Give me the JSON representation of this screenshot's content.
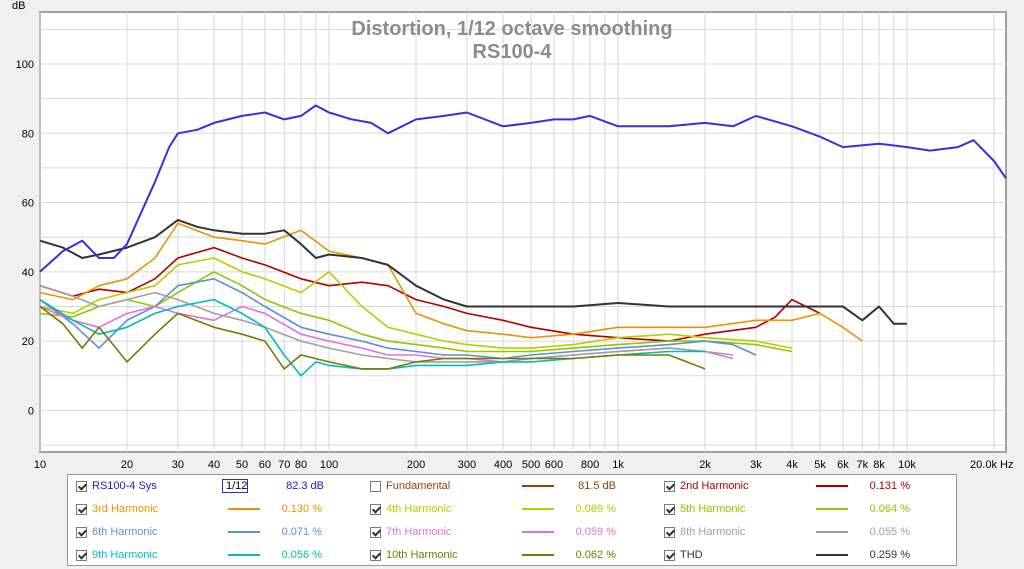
{
  "chart_data": {
    "type": "line",
    "title": "Distortion, 1/12 octave smoothing",
    "subtitle": "RS100-4",
    "ylabel": "dB",
    "xlabel_unit": "Hz",
    "x_scale": "log",
    "xlim": [
      10,
      22000
    ],
    "ylim": [
      -12,
      115
    ],
    "x_ticks": [
      10,
      20,
      30,
      40,
      50,
      60,
      70,
      80,
      100,
      200,
      300,
      400,
      500,
      600,
      800,
      1000,
      2000,
      3000,
      4000,
      5000,
      6000,
      7000,
      8000,
      10000,
      20000
    ],
    "x_tick_labels": [
      "10",
      "20",
      "30",
      "40",
      "50",
      "60",
      "70",
      "80",
      "100",
      "200",
      "300",
      "400",
      "500",
      "600",
      "800",
      "1k",
      "2k",
      "3k",
      "4k",
      "5k",
      "6k",
      "7k",
      "8k",
      "10k",
      "20.0k Hz"
    ],
    "y_ticks": [
      0,
      20,
      40,
      60,
      80,
      100
    ],
    "y_tick_labels": [
      "0",
      "20",
      "40",
      "60",
      "80",
      "100"
    ],
    "grid": true,
    "legend_position": "bottom",
    "series": [
      {
        "name": "RS100-4 Sys",
        "color": "#3333dd",
        "value_label": "82.3 dB",
        "checked": true,
        "x": [
          10,
          12,
          14,
          16,
          18,
          20,
          25,
          28,
          30,
          35,
          40,
          50,
          60,
          70,
          80,
          90,
          100,
          120,
          140,
          160,
          200,
          250,
          300,
          400,
          500,
          600,
          700,
          800,
          1000,
          1500,
          2000,
          2500,
          3000,
          4000,
          5000,
          6000,
          8000,
          10000,
          12000,
          15000,
          17000,
          20000,
          22000
        ],
        "y": [
          40,
          46,
          49,
          44,
          44,
          48,
          66,
          76,
          80,
          81,
          83,
          85,
          86,
          84,
          85,
          88,
          86,
          84,
          83,
          80,
          84,
          85,
          86,
          82,
          83,
          84,
          84,
          85,
          82,
          82,
          83,
          82,
          85,
          82,
          79,
          76,
          77,
          76,
          75,
          76,
          78,
          72,
          67
        ]
      },
      {
        "name": "Fundamental",
        "color": "#8b4513",
        "value_label": "81.5 dB",
        "checked": false,
        "x": [],
        "y": []
      },
      {
        "name": "2nd Harmonic",
        "color": "#b00000",
        "value_label": "0.131 %",
        "checked": true,
        "x": [
          10,
          13,
          16,
          20,
          25,
          30,
          40,
          50,
          60,
          80,
          100,
          130,
          160,
          200,
          250,
          300,
          400,
          500,
          700,
          1000,
          1500,
          2000,
          3000,
          3500,
          4000,
          5000
        ],
        "y": [
          36,
          33,
          35,
          34,
          38,
          44,
          47,
          44,
          42,
          38,
          36,
          37,
          36,
          32,
          30,
          28,
          26,
          24,
          22,
          21,
          20,
          22,
          24,
          27,
          32,
          28
        ]
      },
      {
        "name": "3rd Harmonic",
        "color": "#e69500",
        "value_label": "0.130 %",
        "checked": true,
        "x": [
          10,
          13,
          16,
          20,
          25,
          30,
          40,
          50,
          60,
          80,
          100,
          130,
          160,
          200,
          250,
          300,
          400,
          500,
          700,
          1000,
          1500,
          2000,
          3000,
          4000,
          5000,
          6000,
          7000
        ],
        "y": [
          34,
          32,
          36,
          38,
          44,
          54,
          50,
          49,
          48,
          52,
          46,
          44,
          42,
          28,
          25,
          23,
          22,
          21,
          22,
          24,
          24,
          24,
          26,
          26,
          28,
          24,
          20
        ]
      },
      {
        "name": "4th Harmonic",
        "color": "#bbcc00",
        "value_label": "0.089 %",
        "checked": true,
        "x": [
          10,
          13,
          16,
          20,
          25,
          30,
          40,
          50,
          60,
          80,
          100,
          130,
          160,
          200,
          250,
          300,
          400,
          500,
          700,
          1000,
          1500,
          2000,
          3000,
          4000
        ],
        "y": [
          30,
          28,
          32,
          34,
          36,
          42,
          44,
          40,
          38,
          34,
          40,
          30,
          24,
          22,
          20,
          19,
          18,
          18,
          19,
          21,
          22,
          21,
          20,
          18
        ]
      },
      {
        "name": "5th Harmonic",
        "color": "#8dc800",
        "value_label": "0.064 %",
        "checked": true,
        "x": [
          10,
          13,
          16,
          20,
          25,
          30,
          40,
          50,
          60,
          80,
          100,
          130,
          160,
          200,
          250,
          300,
          400,
          500,
          700,
          1000,
          1500,
          2000,
          3000,
          4000
        ],
        "y": [
          28,
          27,
          30,
          32,
          30,
          34,
          40,
          36,
          32,
          28,
          26,
          22,
          20,
          19,
          18,
          17,
          17,
          17,
          18,
          19,
          20,
          20,
          19,
          17
        ]
      },
      {
        "name": "6th Harmonic",
        "color": "#5b8fd6",
        "value_label": "0.071 %",
        "checked": true,
        "x": [
          10,
          13,
          16,
          20,
          25,
          30,
          40,
          50,
          60,
          80,
          100,
          130,
          160,
          200,
          250,
          300,
          400,
          500,
          700,
          1000,
          1500,
          2000,
          2500,
          3000
        ],
        "y": [
          32,
          25,
          18,
          26,
          30,
          36,
          38,
          34,
          30,
          24,
          22,
          20,
          18,
          17,
          16,
          16,
          15,
          16,
          17,
          18,
          19,
          20,
          19,
          16
        ]
      },
      {
        "name": "7th Harmonic",
        "color": "#e070e0",
        "value_label": "0.059 %",
        "checked": true,
        "x": [
          10,
          13,
          16,
          20,
          25,
          30,
          40,
          50,
          60,
          80,
          100,
          130,
          160,
          200,
          250,
          300,
          400,
          500,
          700,
          1000,
          1500,
          2000,
          2500
        ],
        "y": [
          30,
          26,
          24,
          28,
          30,
          28,
          26,
          30,
          28,
          22,
          20,
          18,
          16,
          16,
          15,
          15,
          14,
          15,
          16,
          17,
          18,
          17,
          15
        ]
      },
      {
        "name": "8th Harmonic",
        "color": "#a0a0a0",
        "value_label": "0.055 %",
        "checked": true,
        "x": [
          10,
          13,
          16,
          20,
          25,
          30,
          40,
          50,
          60,
          80,
          100,
          130,
          160,
          200,
          250,
          300,
          400,
          500,
          700,
          1000,
          1500,
          2000,
          2500
        ],
        "y": [
          36,
          33,
          30,
          32,
          34,
          32,
          28,
          26,
          24,
          20,
          18,
          16,
          15,
          14,
          14,
          14,
          14,
          15,
          16,
          17,
          18,
          17,
          16
        ]
      },
      {
        "name": "9th Harmonic",
        "color": "#00bcbc",
        "value_label": "0.056 %",
        "checked": true,
        "x": [
          10,
          13,
          16,
          20,
          25,
          30,
          40,
          50,
          60,
          70,
          80,
          90,
          100,
          130,
          160,
          200,
          250,
          300,
          400,
          500,
          700,
          1000,
          1500,
          2000
        ],
        "y": [
          32,
          26,
          22,
          24,
          28,
          30,
          32,
          28,
          24,
          16,
          10,
          14,
          13,
          12,
          12,
          13,
          13,
          13,
          14,
          14,
          15,
          16,
          17,
          17
        ]
      },
      {
        "name": "10th Harmonic",
        "color": "#7a7a00",
        "value_label": "0.062 %",
        "checked": true,
        "x": [
          10,
          12,
          14,
          16,
          20,
          25,
          30,
          40,
          50,
          60,
          70,
          80,
          100,
          130,
          160,
          200,
          250,
          300,
          400,
          500,
          700,
          1000,
          1500,
          2000
        ],
        "y": [
          30,
          25,
          18,
          24,
          14,
          22,
          28,
          24,
          22,
          20,
          12,
          16,
          14,
          12,
          12,
          14,
          15,
          15,
          15,
          15,
          15,
          16,
          16,
          12
        ]
      },
      {
        "name": "THD",
        "color": "#333333",
        "value_label": "0.259 %",
        "checked": true,
        "x": [
          10,
          12,
          14,
          16,
          20,
          25,
          30,
          35,
          40,
          50,
          60,
          70,
          80,
          90,
          100,
          130,
          160,
          200,
          250,
          300,
          400,
          500,
          700,
          1000,
          1500,
          2000,
          3000,
          4000,
          5000,
          6000,
          7000,
          8000,
          9000,
          10000
        ],
        "y": [
          49,
          47,
          44,
          45,
          47,
          50,
          55,
          53,
          52,
          51,
          51,
          52,
          48,
          44,
          45,
          44,
          42,
          36,
          32,
          30,
          30,
          30,
          30,
          31,
          30,
          30,
          30,
          30,
          30,
          30,
          26,
          30,
          25,
          25
        ]
      }
    ]
  },
  "legend": {
    "smoothing_label": "1/12"
  }
}
